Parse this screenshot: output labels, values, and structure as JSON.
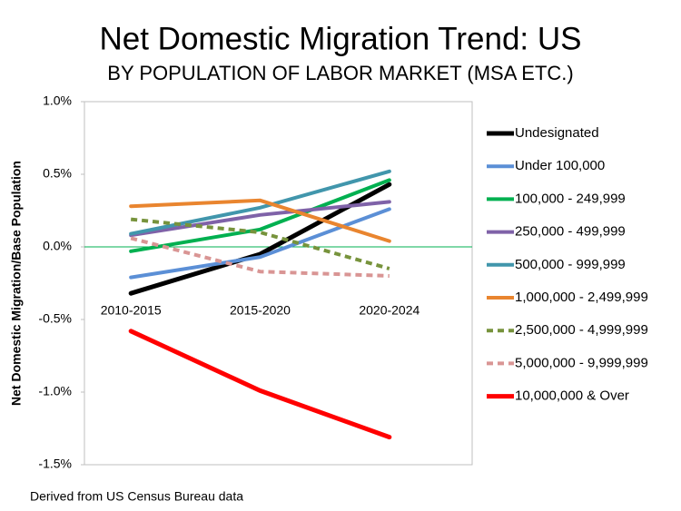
{
  "chart_data": {
    "type": "line",
    "title": "Net Domestic Migration Trend: US",
    "subtitle": "BY POPULATION OF LABOR MARKET (MSA ETC.)",
    "y_label": "Net  Domestic Migration/Base Population",
    "footnote": "Derived from US Census Bureau data",
    "categories": [
      "2010-2015",
      "2015-2020",
      "2020-2024"
    ],
    "ylim": [
      -1.5,
      1.0
    ],
    "yticks": [
      {
        "value": 1.0,
        "label": "1.0%"
      },
      {
        "value": 0.5,
        "label": "0.5%"
      },
      {
        "value": 0,
        "label": "0.0%"
      },
      {
        "value": -0.5,
        "label": "-0.5%"
      },
      {
        "value": -1.0,
        "label": "-1.0%"
      },
      {
        "value": -1.5,
        "label": "-1.5%"
      }
    ],
    "zero_line_color": "#00b050",
    "legend": "right",
    "series": [
      {
        "name": "Undesignated",
        "color": "#000000",
        "values": [
          -0.32,
          -0.05,
          0.43
        ]
      },
      {
        "name": "Under 100,000",
        "color": "#5b8fd6",
        "values": [
          -0.21,
          -0.07,
          0.26
        ]
      },
      {
        "name": "100,000 - 249,999",
        "color": "#00b050",
        "values": [
          -0.03,
          0.12,
          0.46
        ]
      },
      {
        "name": "250,000 - 499,999",
        "color": "#7f62a8",
        "values": [
          0.08,
          0.22,
          0.31
        ]
      },
      {
        "name": "500,000 - 999,999",
        "color": "#4196ac",
        "values": [
          0.09,
          0.27,
          0.52
        ]
      },
      {
        "name": "1,000,000 - 2,499,999",
        "color": "#e9852f",
        "values": [
          0.28,
          0.32,
          0.04
        ]
      },
      {
        "name": "2,500,000 - 4,999,999",
        "color": "#77933c",
        "style": "dashed",
        "values": [
          0.19,
          0.1,
          -0.15
        ]
      },
      {
        "name": "5,000,000 - 9,999,999",
        "color": "#d99594",
        "style": "dashed",
        "values": [
          0.06,
          -0.17,
          -0.2
        ]
      },
      {
        "name": "10,000,000 & Over",
        "color": "#ff0000",
        "values": [
          -0.58,
          -0.99,
          -1.31
        ]
      }
    ]
  }
}
